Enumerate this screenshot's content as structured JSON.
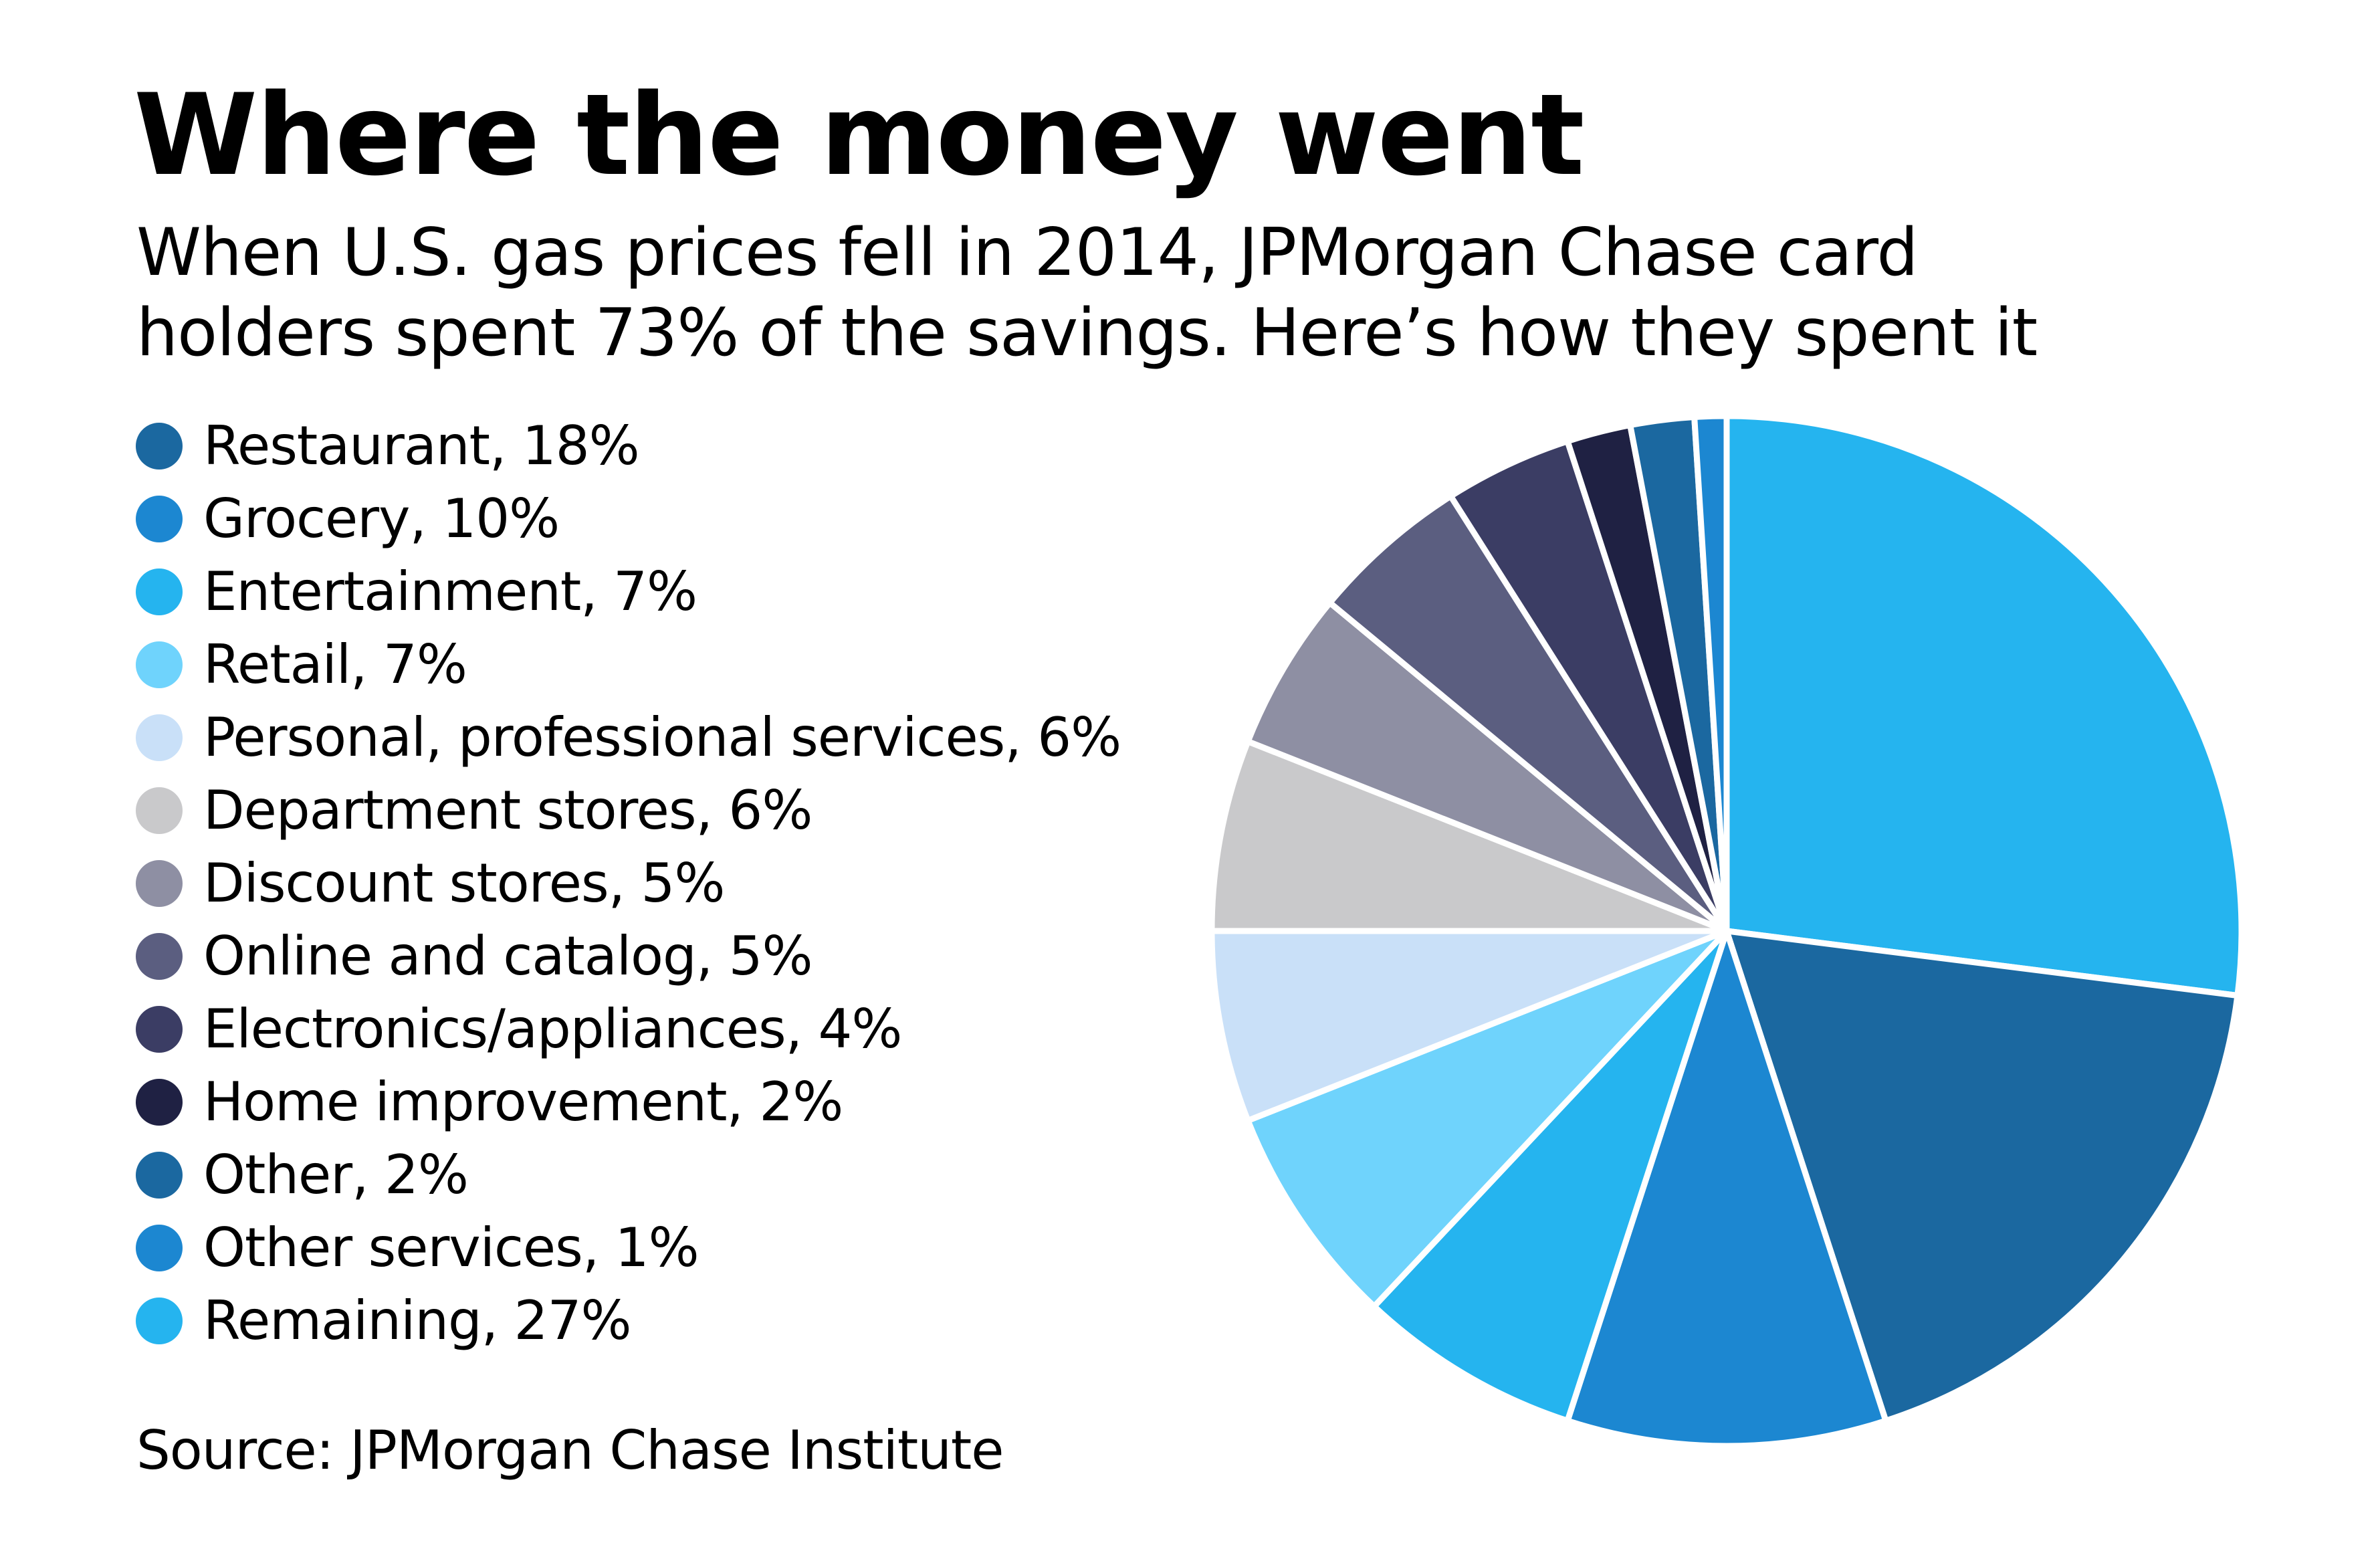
{
  "header": {
    "title": "Where the money went",
    "subtitle_lines": [
      "When U.S. gas prices fell in 2014, JPMorgan Chase card",
      "holders spent 73% of the savings. Here’s how they spent it"
    ]
  },
  "footer": {
    "source": "Source: JPMorgan Chase Institute"
  },
  "chart_data": {
    "type": "pie",
    "title": "Where the money went",
    "subtitle": "When U.S. gas prices fell in 2014, JPMorgan Chase card holders spent 73% of the savings. Here’s how they spent it",
    "unit": "%",
    "start": "12 o'clock, clockwise, beginning with Remaining",
    "legend_position": "left",
    "legend": [
      {
        "label": "Restaurant, 18%",
        "name": "Restaurant",
        "value": 18,
        "color": "#1b68a0"
      },
      {
        "label": "Grocery, 10%",
        "name": "Grocery",
        "value": 10,
        "color": "#1c87d1"
      },
      {
        "label": "Entertainment, 7%",
        "name": "Entertainment",
        "value": 7,
        "color": "#25b4ef"
      },
      {
        "label": "Retail, 7%",
        "name": "Retail",
        "value": 7,
        "color": "#6fd3fc"
      },
      {
        "label": "Personal, professional services, 6%",
        "name": "Personal, professional services",
        "value": 6,
        "color": "#c9e0f8"
      },
      {
        "label": "Department stores, 6%",
        "name": "Department stores",
        "value": 6,
        "color": "#c9c9cb"
      },
      {
        "label": "Discount stores, 5%",
        "name": "Discount stores",
        "value": 5,
        "color": "#8e8fa3"
      },
      {
        "label": "Online and catalog, 5%",
        "name": "Online and catalog",
        "value": 5,
        "color": "#5b5e80"
      },
      {
        "label": "Electronics/appliances, 4%",
        "name": "Electronics/appliances",
        "value": 4,
        "color": "#3b3d64"
      },
      {
        "label": "Home improvement, 2%",
        "name": "Home improvement",
        "value": 2,
        "color": "#1f2143"
      },
      {
        "label": "Other, 2%",
        "name": "Other",
        "value": 2,
        "color": "#1b68a0"
      },
      {
        "label": "Other services, 1%",
        "name": "Other services",
        "value": 1,
        "color": "#1c87d1"
      },
      {
        "label": "Remaining, 27%",
        "name": "Remaining",
        "value": 27,
        "color": "#25b4ef"
      }
    ],
    "slice_order": [
      "Remaining",
      "Restaurant",
      "Grocery",
      "Entertainment",
      "Retail",
      "Personal, professional services",
      "Department stores",
      "Discount stores",
      "Online and catalog",
      "Electronics/appliances",
      "Home improvement",
      "Other",
      "Other services"
    ],
    "source": "Source: JPMorgan Chase Institute"
  }
}
